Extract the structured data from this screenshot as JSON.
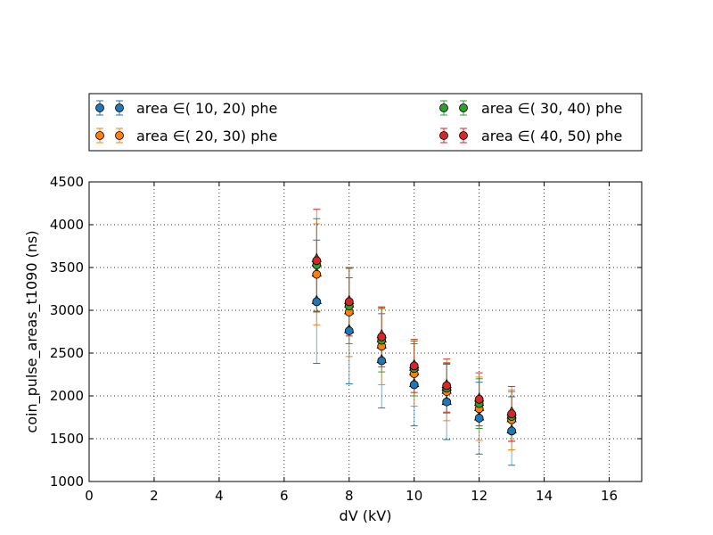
{
  "chart_data": {
    "type": "scatter",
    "xlabel": "dV (kV)",
    "ylabel": "coin_pulse_areas_t1090 (ns)",
    "xlim": [
      0,
      17
    ],
    "ylim": [
      1000,
      4500
    ],
    "xticks": [
      0,
      2,
      4,
      6,
      8,
      10,
      12,
      14,
      16
    ],
    "yticks": [
      1000,
      1500,
      2000,
      2500,
      3000,
      3500,
      4000,
      4500
    ],
    "grid": true,
    "legend_position": "top, above plot, two columns",
    "series": [
      {
        "name": "area ∈( 10,  20) phe",
        "color": "#1f77b4",
        "x": [
          7,
          8,
          9,
          10,
          11,
          12,
          13
        ],
        "y": [
          3100,
          2760,
          2410,
          2130,
          1930,
          1740,
          1590
        ],
        "yerr": [
          720,
          620,
          550,
          480,
          440,
          420,
          400
        ],
        "tri_y": [
          3120,
          2780,
          2430,
          2150,
          1940,
          1760,
          1610
        ]
      },
      {
        "name": "area ∈( 20,  30) phe",
        "color": "#ff7f0e",
        "x": [
          7,
          8,
          9,
          10,
          11,
          12,
          13
        ],
        "y": [
          3420,
          2980,
          2580,
          2260,
          2050,
          1850,
          1720
        ],
        "yerr": [
          590,
          520,
          450,
          380,
          340,
          370,
          350
        ],
        "tri_y": [
          3440,
          3000,
          2600,
          2290,
          2070,
          1870,
          1740
        ]
      },
      {
        "name": "area ∈( 30,  40) phe",
        "color": "#2ca02c",
        "x": [
          7,
          8,
          9,
          10,
          11,
          12,
          13
        ],
        "y": [
          3530,
          3050,
          2650,
          2320,
          2090,
          1910,
          1760
        ],
        "yerr": [
          540,
          440,
          370,
          320,
          290,
          290,
          290
        ],
        "tri_y": [
          3560,
          3080,
          2670,
          2340,
          2110,
          1930,
          1780
        ]
      },
      {
        "name": "area ∈( 40,  50) phe",
        "color": "#d62728",
        "x": [
          7,
          8,
          9,
          10,
          11,
          12,
          13
        ],
        "y": [
          3580,
          3100,
          2690,
          2350,
          2120,
          1960,
          1790
        ],
        "yerr": [
          600,
          400,
          350,
          310,
          310,
          310,
          320
        ],
        "tri_y": [
          3610,
          3120,
          2720,
          2370,
          2140,
          1980,
          1820
        ]
      }
    ]
  }
}
